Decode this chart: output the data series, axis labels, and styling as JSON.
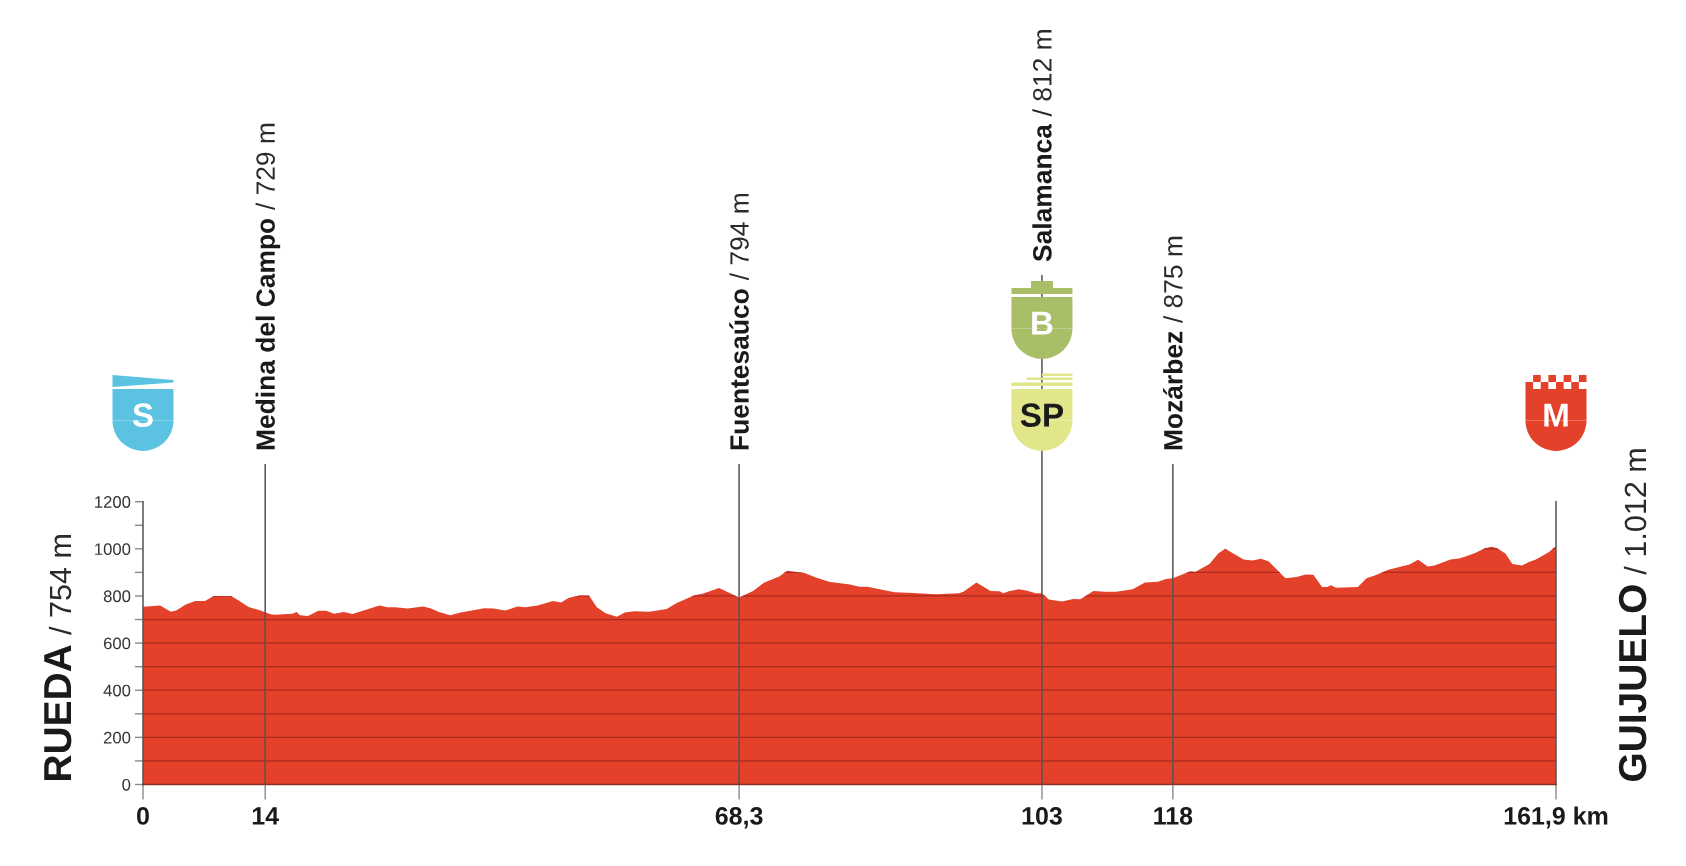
{
  "chart_data": {
    "type": "area",
    "color": "#e3412a",
    "x": [
      0,
      1.95,
      3.2,
      3.8,
      4.9,
      6.0,
      7.1,
      8.1,
      10.1,
      11.0,
      12.1,
      13.3,
      14.6,
      15.1,
      17.1,
      17.6,
      18.0,
      18.9,
      20.1,
      21.0,
      21.9,
      23.0,
      24.0,
      27.1,
      28.0,
      28.9,
      30.3,
      32.1,
      33.0,
      33.9,
      35.2,
      36.4,
      39.1,
      40.2,
      41.5,
      42.9,
      43.8,
      45.2,
      47.0,
      47.9,
      48.8,
      50.0,
      51.1,
      52.0,
      53.0,
      54.3,
      55.2,
      56.3,
      58.0,
      60.0,
      61.1,
      63.1,
      64.2,
      66.0,
      68.3,
      69.9,
      71.2,
      72.9,
      73.8,
      75.8,
      77.1,
      78.6,
      81.0,
      82.1,
      83.0,
      86.1,
      88.3,
      89.2,
      90.9,
      93.5,
      94.0,
      95.5,
      97.1,
      98.1,
      98.6,
      99.2,
      100.3,
      101.2,
      102.3,
      103,
      103.8,
      105.3,
      106.6,
      107.4,
      108.9,
      110.2,
      111.5,
      113.4,
      114.8,
      116.3,
      117.2,
      118,
      120.0,
      120.6,
      122.2,
      123.2,
      124.0,
      126.1,
      127.1,
      128.1,
      129.0,
      130.9,
      132.2,
      133.2,
      134.1,
      135.1,
      135.7,
      136.1,
      136.7,
      139.2,
      140.2,
      141.2,
      142.7,
      145.1,
      146.1,
      147.2,
      148.0,
      149.8,
      150.8,
      151.7,
      152.7,
      153.7,
      154.5,
      155.1,
      156.1,
      156.5,
      156.9,
      158.0,
      158.8,
      159.6,
      161.1,
      161.9
    ],
    "values": [
      754,
      760,
      733,
      738,
      764,
      779,
      779,
      800,
      800,
      780,
      753,
      740,
      722,
      720,
      725,
      732,
      718,
      715,
      737,
      737,
      725,
      732,
      723,
      760,
      752,
      752,
      747,
      755,
      747,
      732,
      718,
      730,
      748,
      747,
      738,
      755,
      752,
      760,
      779,
      772,
      792,
      802,
      802,
      752,
      727,
      712,
      730,
      735,
      733,
      745,
      769,
      802,
      810,
      834,
      794,
      821,
      857,
      883,
      907,
      897,
      878,
      860,
      849,
      839,
      839,
      816,
      813,
      810,
      807,
      811,
      818,
      857,
      821,
      820,
      811,
      820,
      828,
      823,
      811,
      812,
      785,
      777,
      787,
      786,
      821,
      818,
      818,
      828,
      857,
      860,
      872,
      875,
      905,
      903,
      936,
      980,
      1000,
      955,
      951,
      958,
      946,
      875,
      881,
      891,
      890,
      838,
      838,
      845,
      835,
      838,
      875,
      888,
      911,
      933,
      954,
      925,
      929,
      955,
      959,
      970,
      983,
      1001,
      1009,
      1004,
      980,
      958,
      936,
      929,
      944,
      955,
      987,
      1012
    ],
    "xlim": [
      0,
      161.9
    ],
    "ylim": [
      0,
      1200
    ],
    "xticks": [
      0,
      14,
      {
        "value": 68.3,
        "label": "68,3"
      },
      103,
      118,
      {
        "value": 161.9,
        "label": "161,9 km"
      }
    ],
    "yticks": [
      0,
      {
        "value": 100,
        "label": null
      },
      200,
      {
        "value": 300,
        "label": null
      },
      400,
      {
        "value": 500,
        "label": null
      },
      600,
      {
        "value": 700,
        "label": null
      },
      800,
      {
        "value": 900,
        "label": null
      },
      1000,
      {
        "value": 1100,
        "label": null
      },
      1200
    ],
    "grid": "y",
    "ref_lines": [
      {
        "axis": "x",
        "value": 14,
        "label": "Medina del Campo"
      },
      {
        "axis": "x",
        "value": 68.3,
        "label": "Fuentesaúco"
      },
      {
        "axis": "x",
        "value": 103,
        "label": "Salamanca"
      },
      {
        "axis": "x",
        "value": 118,
        "label": "Mozárbez"
      }
    ],
    "annotations": [
      "RUEDA",
      "/ 754 m",
      "S",
      "/ 729 m",
      "/ 794 m",
      "/ 812 m",
      "B",
      "SP",
      "/ 875 m",
      "GUIJUELO",
      "/ 1.012 m",
      "M"
    ]
  }
}
